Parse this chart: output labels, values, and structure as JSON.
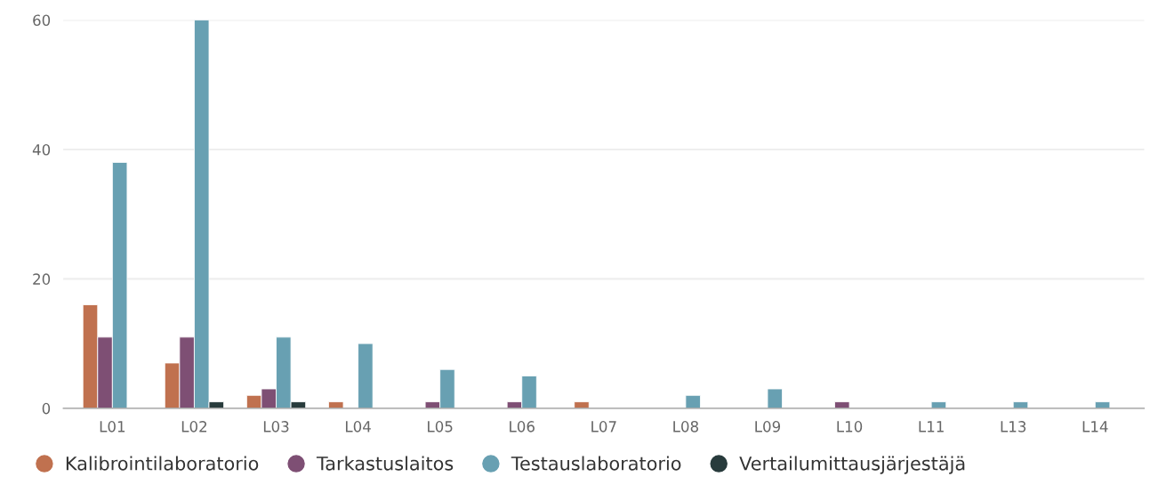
{
  "chart_data": {
    "type": "bar",
    "categories": [
      "L01",
      "L02",
      "L03",
      "L04",
      "L05",
      "L06",
      "L07",
      "L08",
      "L09",
      "L10",
      "L11",
      "L13",
      "L14"
    ],
    "series": [
      {
        "name": "Kalibrointilaboratorio",
        "color": "#c0714f",
        "values": [
          16,
          7,
          2,
          1,
          null,
          null,
          1,
          null,
          null,
          null,
          null,
          null,
          null
        ]
      },
      {
        "name": "Tarkastuslaitos",
        "color": "#7e4f74",
        "values": [
          11,
          11,
          3,
          null,
          1,
          1,
          null,
          null,
          null,
          1,
          null,
          null,
          null
        ]
      },
      {
        "name": "Testauslaboratorio",
        "color": "#68a0b2",
        "values": [
          38,
          60,
          11,
          10,
          6,
          5,
          null,
          2,
          3,
          null,
          1,
          1,
          1
        ]
      },
      {
        "name": "Vertailumittausjärjestäjä",
        "color": "#283b3c",
        "values": [
          null,
          1,
          1,
          null,
          null,
          null,
          null,
          null,
          null,
          null,
          null,
          null,
          null
        ]
      }
    ],
    "ylim": [
      0,
      60
    ],
    "yticks": [
      0,
      20,
      40,
      60
    ],
    "grid": "y",
    "legend": "bottom left"
  }
}
